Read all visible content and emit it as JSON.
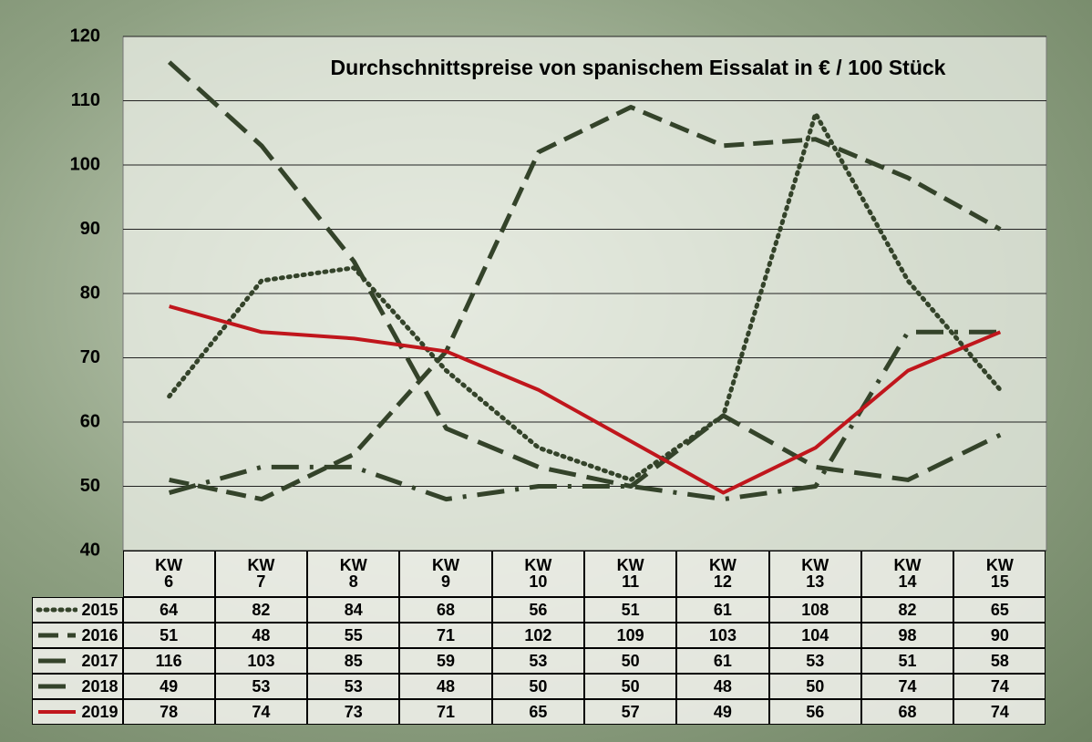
{
  "chart_data": {
    "type": "line",
    "title": "Durchschnittspreise von spanischem Eissalat in € / 100 Stück",
    "categories": [
      "KW\n6",
      "KW\n7",
      "KW\n8",
      "KW\n9",
      "KW\n10",
      "KW\n11",
      "KW\n12",
      "KW\n13",
      "KW\n14",
      "KW\n15"
    ],
    "series": [
      {
        "name": "2015",
        "color": "#34432a",
        "dash": "dotted",
        "values": [
          64,
          82,
          84,
          68,
          56,
          51,
          61,
          108,
          82,
          65
        ]
      },
      {
        "name": "2016",
        "color": "#34432a",
        "dash": "dashed",
        "values": [
          51,
          48,
          55,
          71,
          102,
          109,
          103,
          104,
          98,
          90
        ]
      },
      {
        "name": "2017",
        "color": "#34432a",
        "dash": "long-dashed",
        "values": [
          116,
          103,
          85,
          59,
          53,
          50,
          61,
          53,
          51,
          58
        ]
      },
      {
        "name": "2018",
        "color": "#34432a",
        "dash": "dash-dot",
        "values": [
          49,
          53,
          53,
          48,
          50,
          50,
          48,
          50,
          74,
          74
        ]
      },
      {
        "name": "2019",
        "color": "#c0161c",
        "dash": "solid",
        "values": [
          78,
          74,
          73,
          71,
          65,
          57,
          49,
          56,
          68,
          74
        ]
      }
    ],
    "ylim": [
      40,
      120
    ],
    "yticks": [
      40,
      50,
      60,
      70,
      80,
      90,
      100,
      110,
      120
    ],
    "grid": true
  }
}
